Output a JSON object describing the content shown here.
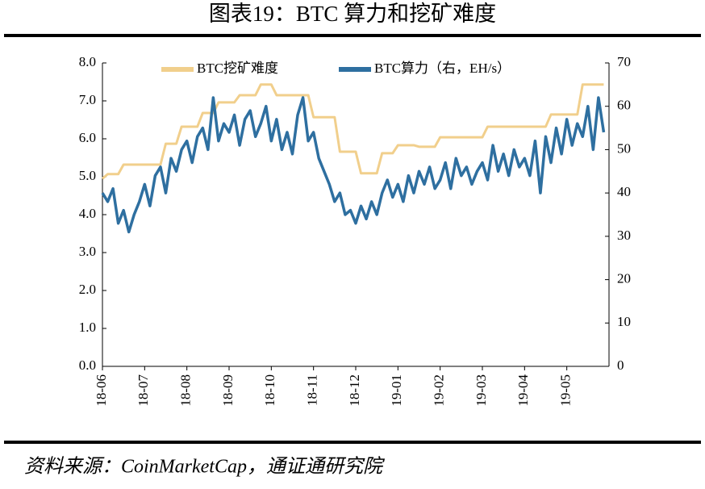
{
  "chart_data": {
    "type": "line",
    "title": "图表19：BTC 算力和挖矿难度",
    "source": "资料来源：CoinMarketCap，通证通研究院",
    "categories": [
      "18-06",
      null,
      null,
      null,
      null,
      null,
      null,
      null,
      "18-07",
      null,
      null,
      null,
      null,
      null,
      null,
      null,
      "18-08",
      null,
      null,
      null,
      null,
      null,
      null,
      null,
      "18-09",
      null,
      null,
      null,
      null,
      null,
      null,
      null,
      "18-10",
      null,
      null,
      null,
      null,
      null,
      null,
      null,
      "18-11",
      null,
      null,
      null,
      null,
      null,
      null,
      null,
      "18-12",
      null,
      null,
      null,
      null,
      null,
      null,
      null,
      "19-01",
      null,
      null,
      null,
      null,
      null,
      null,
      null,
      "19-02",
      null,
      null,
      null,
      null,
      null,
      null,
      null,
      "19-03",
      null,
      null,
      null,
      null,
      null,
      null,
      null,
      "19-04",
      null,
      null,
      null,
      null,
      null,
      null,
      null,
      "19-05",
      null,
      null,
      null,
      null,
      null,
      null,
      null
    ],
    "series": [
      {
        "name": "BTC挖矿难度",
        "color": "#f1cf8c",
        "axis": "y",
        "values": [
          4.95,
          5.07,
          5.07,
          5.07,
          5.32,
          5.32,
          5.32,
          5.32,
          5.32,
          5.32,
          5.32,
          5.32,
          5.87,
          5.87,
          5.87,
          6.32,
          6.32,
          6.32,
          6.32,
          6.68,
          6.68,
          6.68,
          6.96,
          6.96,
          6.96,
          6.96,
          7.15,
          7.15,
          7.15,
          7.15,
          7.43,
          7.43,
          7.43,
          7.15,
          7.15,
          7.15,
          7.15,
          7.15,
          7.15,
          7.15,
          6.57,
          6.57,
          6.57,
          6.57,
          6.57,
          5.66,
          5.66,
          5.66,
          5.66,
          5.09,
          5.09,
          5.09,
          5.09,
          5.62,
          5.62,
          5.62,
          5.83,
          5.83,
          5.83,
          5.83,
          5.79,
          5.79,
          5.79,
          5.79,
          6.04,
          6.04,
          6.04,
          6.04,
          6.04,
          6.04,
          6.04,
          6.04,
          6.04,
          6.32,
          6.32,
          6.32,
          6.32,
          6.32,
          6.32,
          6.32,
          6.32,
          6.32,
          6.32,
          6.32,
          6.32,
          6.64,
          6.64,
          6.64,
          6.64,
          6.64,
          6.64,
          7.43,
          7.43,
          7.43,
          7.43,
          7.43
        ]
      },
      {
        "name": "BTC算力（右，EH/s）",
        "color": "#2e6fa0",
        "axis": "y2",
        "values": [
          40,
          38,
          41,
          33,
          36,
          31,
          35,
          38,
          42,
          37,
          44,
          46,
          40,
          48,
          45,
          50,
          52,
          47,
          53,
          55,
          50,
          62,
          52,
          56,
          54,
          58,
          51,
          57,
          59,
          53,
          56,
          60,
          52,
          57,
          50,
          54,
          49,
          58,
          62,
          52,
          54,
          48,
          45,
          42,
          38,
          40,
          35,
          36,
          33,
          37,
          34,
          38,
          35,
          40,
          43,
          39,
          42,
          38,
          44,
          40,
          45,
          42,
          46,
          41,
          43,
          47,
          41,
          48,
          44,
          46,
          42,
          45,
          47,
          43,
          51,
          45,
          49,
          44,
          50,
          46,
          48,
          44,
          52,
          40,
          53,
          47,
          55,
          49,
          57,
          51,
          56,
          53,
          60,
          50,
          62,
          54
        ]
      }
    ],
    "ylim": [
      0,
      8
    ],
    "yticks": [
      {
        "value": 0,
        "label": "0.0"
      },
      {
        "value": 1,
        "label": "1.0"
      },
      {
        "value": 2,
        "label": "2.0"
      },
      {
        "value": 3,
        "label": "3.0"
      },
      {
        "value": 4,
        "label": "4.0"
      },
      {
        "value": 5,
        "label": "5.0"
      },
      {
        "value": 6,
        "label": "6.0"
      },
      {
        "value": 7,
        "label": "7.0"
      },
      {
        "value": 8,
        "label": "8.0"
      }
    ],
    "y2lim": [
      0,
      70
    ],
    "y2ticks": [
      0,
      10,
      20,
      30,
      40,
      50,
      60,
      70
    ],
    "legend": "top"
  }
}
